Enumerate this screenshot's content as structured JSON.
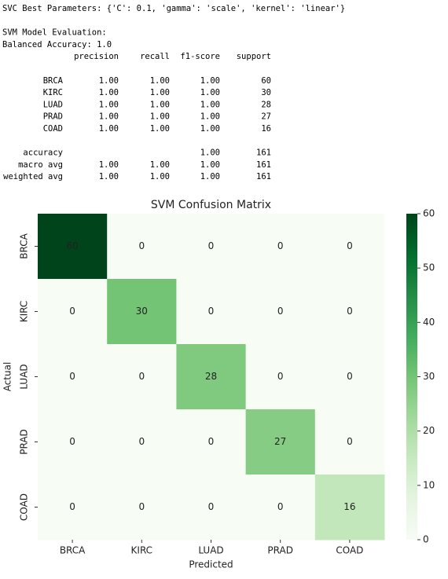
{
  "output": {
    "lines": [
      "SVC Best Parameters: {'C': 0.1, 'gamma': 'scale', 'kernel': 'linear'}",
      "SVM Model Evaluation:",
      "Balanced Accuracy: 1.0"
    ]
  },
  "report": {
    "header": [
      "precision",
      "recall",
      "f1-score",
      "support"
    ],
    "rows": [
      [
        "BRCA",
        "1.00",
        "1.00",
        "1.00",
        "60"
      ],
      [
        "KIRC",
        "1.00",
        "1.00",
        "1.00",
        "30"
      ],
      [
        "LUAD",
        "1.00",
        "1.00",
        "1.00",
        "28"
      ],
      [
        "PRAD",
        "1.00",
        "1.00",
        "1.00",
        "27"
      ],
      [
        "COAD",
        "1.00",
        "1.00",
        "1.00",
        "16"
      ]
    ],
    "summary": [
      [
        "accuracy",
        null,
        null,
        "1.00",
        "161"
      ],
      [
        "macro avg",
        "1.00",
        "1.00",
        "1.00",
        "161"
      ],
      [
        "weighted avg",
        "1.00",
        "1.00",
        "1.00",
        "161"
      ]
    ]
  },
  "chart_data": {
    "type": "heatmap",
    "title": "SVM Confusion Matrix",
    "xlabel": "Predicted",
    "ylabel": "Actual",
    "x_categories": [
      "BRCA",
      "KIRC",
      "LUAD",
      "PRAD",
      "COAD"
    ],
    "y_categories": [
      "BRCA",
      "KIRC",
      "LUAD",
      "PRAD",
      "COAD"
    ],
    "values": [
      [
        60,
        0,
        0,
        0,
        0
      ],
      [
        0,
        30,
        0,
        0,
        0
      ],
      [
        0,
        0,
        28,
        0,
        0
      ],
      [
        0,
        0,
        0,
        27,
        0
      ],
      [
        0,
        0,
        0,
        0,
        16
      ]
    ],
    "colormap": "Greens",
    "zlim": [
      0,
      60
    ],
    "colorbar_ticks": [
      0,
      10,
      20,
      30,
      40,
      50,
      60
    ]
  }
}
